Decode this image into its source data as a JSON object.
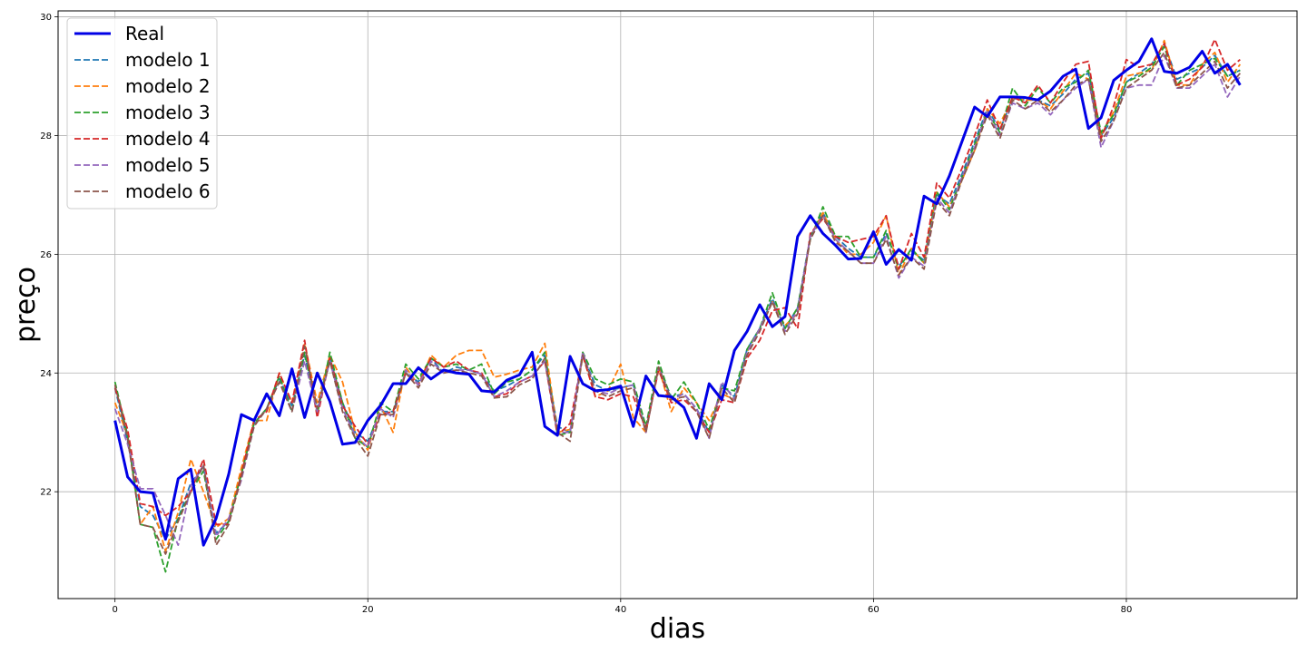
{
  "chart_data": {
    "type": "line",
    "title": "",
    "xlabel": "dias",
    "ylabel": "preço",
    "xlim": [
      -4.5,
      93.5
    ],
    "ylim": [
      20.2,
      30.1
    ],
    "xticks": [
      0,
      20,
      40,
      60,
      80
    ],
    "yticks": [
      22,
      24,
      26,
      28,
      30
    ],
    "grid": true,
    "legend_position": "top-left",
    "series": [
      {
        "name": "Real",
        "color": "#0000e6",
        "dash": "solid",
        "values": [
          23.2,
          22.25,
          22.0,
          21.98,
          21.2,
          22.22,
          22.38,
          21.1,
          21.55,
          22.3,
          23.3,
          23.2,
          23.65,
          23.28,
          24.07,
          23.25,
          24.0,
          23.52,
          22.8,
          22.83,
          23.2,
          23.45,
          23.82,
          23.82,
          24.09,
          23.9,
          24.05,
          24.0,
          23.98,
          23.7,
          23.68,
          23.88,
          23.97,
          24.35,
          23.1,
          22.95,
          24.28,
          23.82,
          23.7,
          23.72,
          23.78,
          23.1,
          23.95,
          23.62,
          23.6,
          23.42,
          22.9,
          23.82,
          23.55,
          24.38,
          24.7,
          25.15,
          24.78,
          24.95,
          26.3,
          26.65,
          26.35,
          26.15,
          25.92,
          25.93,
          26.38,
          25.83,
          26.08,
          25.9,
          26.98,
          26.85,
          27.32,
          27.9,
          28.48,
          28.32,
          28.65,
          28.65,
          28.64,
          28.6,
          28.75,
          29.0,
          29.12,
          28.12,
          28.3,
          28.93,
          29.1,
          29.25,
          29.63,
          29.08,
          29.05,
          29.15,
          29.42,
          29.05,
          29.2,
          28.85
        ]
      },
      {
        "name": "modelo 1",
        "color": "#1f77b4",
        "dash": "dashed",
        "values": [
          23.75,
          22.85,
          21.75,
          21.6,
          21.2,
          21.55,
          22.15,
          22.4,
          21.3,
          21.5,
          22.3,
          23.15,
          23.4,
          23.9,
          23.45,
          24.3,
          23.4,
          24.25,
          23.5,
          23.0,
          22.85,
          23.35,
          23.35,
          24.0,
          23.85,
          24.25,
          24.0,
          24.1,
          24.05,
          23.98,
          23.7,
          23.78,
          23.9,
          24.05,
          24.3,
          23.1,
          23.0,
          24.3,
          23.8,
          23.7,
          23.75,
          23.8,
          23.1,
          24.1,
          23.6,
          23.65,
          23.4,
          23.0,
          23.8,
          23.6,
          24.4,
          24.75,
          25.25,
          24.75,
          25.1,
          26.3,
          26.7,
          26.3,
          26.1,
          25.95,
          25.95,
          26.35,
          25.8,
          26.05,
          25.9,
          27.0,
          26.85,
          27.35,
          27.9,
          28.45,
          28.1,
          28.62,
          28.6,
          28.6,
          28.5,
          28.7,
          28.95,
          29.05,
          28.0,
          28.3,
          28.9,
          29.05,
          29.2,
          29.55,
          28.95,
          29.05,
          29.15,
          29.35,
          29.0,
          29.1
        ]
      },
      {
        "name": "modelo 2",
        "color": "#ff7f0e",
        "dash": "dashed",
        "values": [
          23.5,
          22.95,
          21.45,
          21.75,
          21.0,
          21.65,
          22.55,
          22.0,
          21.4,
          21.55,
          22.4,
          23.2,
          23.2,
          24.0,
          23.5,
          24.5,
          23.5,
          24.3,
          23.85,
          23.0,
          22.7,
          23.45,
          23.0,
          24.1,
          23.8,
          24.3,
          24.1,
          24.3,
          24.38,
          24.38,
          23.93,
          23.98,
          24.05,
          24.1,
          24.5,
          23.0,
          23.05,
          24.3,
          23.6,
          23.7,
          24.15,
          23.25,
          23.0,
          24.1,
          23.35,
          23.75,
          23.5,
          23.2,
          23.65,
          23.55,
          24.35,
          24.75,
          25.2,
          24.8,
          25.0,
          26.3,
          26.7,
          26.25,
          26.0,
          26.0,
          26.2,
          26.65,
          25.65,
          26.1,
          25.85,
          27.05,
          26.8,
          27.25,
          27.75,
          28.45,
          28.2,
          28.62,
          28.6,
          28.6,
          28.45,
          28.75,
          29.05,
          28.95,
          28.0,
          28.4,
          29.0,
          29.05,
          29.1,
          29.6,
          28.85,
          28.85,
          29.2,
          29.4,
          28.9,
          29.2
        ]
      },
      {
        "name": "modelo 3",
        "color": "#2ca02c",
        "dash": "dashed",
        "values": [
          23.85,
          22.95,
          21.45,
          21.4,
          20.65,
          21.55,
          22.0,
          22.35,
          21.2,
          21.5,
          22.3,
          23.15,
          23.4,
          23.95,
          23.35,
          24.35,
          23.3,
          24.35,
          23.5,
          22.9,
          22.75,
          23.5,
          23.35,
          24.15,
          23.9,
          24.25,
          24.1,
          24.15,
          24.05,
          24.15,
          23.65,
          23.85,
          23.9,
          24.05,
          24.35,
          22.95,
          23.0,
          24.35,
          23.9,
          23.8,
          23.9,
          23.85,
          23.1,
          24.2,
          23.55,
          23.85,
          23.5,
          23.05,
          23.75,
          23.7,
          24.4,
          24.75,
          25.35,
          24.75,
          25.1,
          26.25,
          26.8,
          26.3,
          26.3,
          25.95,
          25.95,
          26.4,
          25.75,
          26.1,
          25.85,
          27.05,
          26.75,
          27.3,
          27.85,
          28.4,
          28.05,
          28.8,
          28.5,
          28.8,
          28.55,
          28.8,
          28.9,
          29.1,
          28.05,
          28.35,
          28.9,
          29.0,
          29.15,
          29.5,
          28.85,
          29.1,
          29.2,
          29.3,
          29.0,
          29.1
        ]
      },
      {
        "name": "modelo 4",
        "color": "#d62728",
        "dash": "dashed",
        "values": [
          23.75,
          23.05,
          21.8,
          21.75,
          21.6,
          21.75,
          22.0,
          22.55,
          21.45,
          21.45,
          22.3,
          23.2,
          23.35,
          24.0,
          23.5,
          24.55,
          23.25,
          24.25,
          23.45,
          23.1,
          22.8,
          23.3,
          23.35,
          24.0,
          23.8,
          24.25,
          24.1,
          24.2,
          24.05,
          24.0,
          23.6,
          23.65,
          23.85,
          23.95,
          24.2,
          22.95,
          23.15,
          24.3,
          23.6,
          23.55,
          23.65,
          23.6,
          23.05,
          24.05,
          23.5,
          23.55,
          23.35,
          23.0,
          23.55,
          23.5,
          24.25,
          24.55,
          25.05,
          25.1,
          24.75,
          26.35,
          26.6,
          26.3,
          26.2,
          26.25,
          26.3,
          26.65,
          25.75,
          26.35,
          25.95,
          27.2,
          26.95,
          27.45,
          28.0,
          28.6,
          28.1,
          28.65,
          28.55,
          28.85,
          28.55,
          28.9,
          29.2,
          29.25,
          27.95,
          28.5,
          29.28,
          29.15,
          29.2,
          29.55,
          28.85,
          28.95,
          29.15,
          29.62,
          29.1,
          29.28
        ]
      },
      {
        "name": "modelo 5",
        "color": "#9467bd",
        "dash": "dashed",
        "values": [
          23.4,
          22.8,
          22.05,
          22.05,
          21.6,
          21.1,
          22.1,
          22.45,
          21.25,
          21.55,
          22.2,
          23.1,
          23.4,
          23.85,
          23.35,
          24.2,
          23.35,
          24.2,
          23.4,
          22.95,
          22.75,
          23.4,
          23.25,
          24.05,
          23.8,
          24.2,
          24.0,
          24.05,
          24.05,
          23.98,
          23.6,
          23.7,
          23.85,
          23.95,
          24.2,
          23.0,
          23.0,
          24.35,
          23.7,
          23.65,
          23.75,
          23.8,
          23.0,
          24.1,
          23.55,
          23.65,
          23.4,
          22.9,
          23.85,
          23.55,
          24.35,
          24.75,
          25.2,
          24.7,
          25.05,
          26.3,
          26.65,
          26.25,
          26.05,
          25.85,
          25.85,
          26.3,
          25.6,
          25.95,
          25.8,
          26.95,
          26.7,
          27.3,
          27.8,
          28.4,
          28.0,
          28.55,
          28.45,
          28.55,
          28.35,
          28.6,
          28.8,
          28.95,
          27.8,
          28.25,
          28.8,
          28.85,
          28.85,
          29.35,
          28.8,
          28.8,
          29.0,
          29.2,
          28.65,
          29.0
        ]
      },
      {
        "name": "modelo 6",
        "color": "#8c564b",
        "dash": "dashed",
        "values": [
          23.8,
          22.9,
          21.45,
          21.4,
          20.95,
          21.5,
          22.0,
          22.45,
          21.1,
          21.45,
          22.25,
          23.1,
          23.4,
          23.85,
          23.35,
          24.45,
          23.4,
          24.2,
          23.35,
          22.9,
          22.6,
          23.3,
          23.3,
          24.0,
          23.75,
          24.15,
          24.0,
          24.05,
          24.0,
          23.95,
          23.58,
          23.6,
          23.8,
          23.9,
          24.25,
          23.0,
          22.85,
          24.3,
          23.7,
          23.6,
          23.7,
          23.75,
          23.0,
          24.1,
          23.55,
          23.6,
          23.35,
          22.9,
          23.75,
          23.5,
          24.3,
          24.7,
          25.2,
          24.65,
          25.0,
          26.25,
          26.65,
          26.2,
          26.05,
          25.85,
          25.85,
          26.25,
          25.65,
          25.95,
          25.75,
          26.9,
          26.65,
          27.25,
          27.75,
          28.35,
          27.95,
          28.6,
          28.45,
          28.6,
          28.4,
          28.6,
          28.85,
          28.95,
          27.9,
          28.25,
          28.8,
          28.95,
          29.1,
          29.4,
          28.8,
          28.85,
          29.05,
          29.25,
          28.8,
          29.05
        ]
      }
    ]
  }
}
